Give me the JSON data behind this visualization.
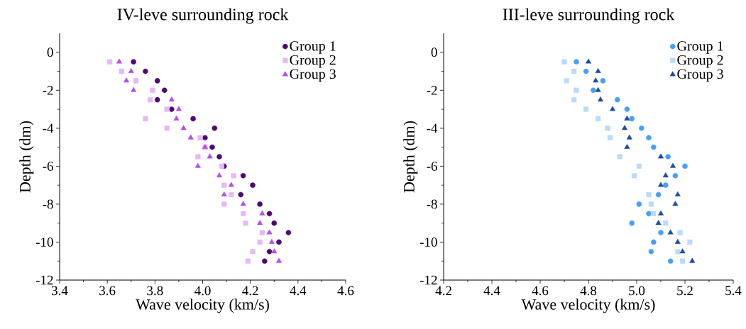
{
  "chart_data": [
    {
      "type": "scatter",
      "title": "IV-leve surrounding rock",
      "xlabel": "Wave velocity (km/s)",
      "ylabel": "Depth (dm)",
      "xlim": [
        3.4,
        4.6
      ],
      "ylim": [
        -12,
        1
      ],
      "xticks": [
        3.4,
        3.6,
        3.8,
        {
          "value": 4,
          "label": "4.0"
        },
        4.2,
        4.4,
        4.6
      ],
      "yticks": [
        0,
        -2,
        -4,
        -6,
        -8,
        -10,
        -12
      ],
      "legend": "top right",
      "grid": false,
      "series": [
        {
          "name": "Group 1",
          "color": "#4b0c70",
          "marker": "circle",
          "x": [
            3.71,
            3.76,
            3.81,
            3.84,
            3.81,
            3.87,
            3.96,
            4.05,
            4.01,
            4.04,
            4.07,
            4.09,
            4.17,
            4.21,
            4.16,
            4.24,
            4.28,
            4.3,
            4.36,
            4.32,
            4.28,
            4.26
          ],
          "values": [
            -0.5,
            -1,
            -1.5,
            -2,
            -2.5,
            -3,
            -3.5,
            -4,
            -4.5,
            -5,
            -5.5,
            -6,
            -6.5,
            -7,
            -7.5,
            -8,
            -8.5,
            -9,
            -9.5,
            -10,
            -10.5,
            -11
          ]
        },
        {
          "name": "Group 2",
          "color": "#e6b9f6",
          "marker": "square",
          "x": [
            3.61,
            3.66,
            3.72,
            3.79,
            3.78,
            3.85,
            3.76,
            3.85,
            3.99,
            4.01,
            3.98,
            4.08,
            4.13,
            4.09,
            4.12,
            4.09,
            4.17,
            4.18,
            4.25,
            4.24,
            4.21,
            4.19
          ],
          "values": [
            -0.5,
            -1,
            -1.5,
            -2,
            -2.5,
            -3,
            -3.5,
            -4,
            -4.5,
            -5,
            -5.5,
            -6,
            -6.5,
            -7,
            -7.5,
            -8,
            -8.5,
            -9,
            -9.5,
            -10,
            -10.5,
            -11
          ]
        },
        {
          "name": "Group 3",
          "color": "#b34ef0",
          "marker": "triangle",
          "x": [
            3.65,
            3.7,
            3.68,
            3.71,
            3.87,
            3.9,
            3.89,
            3.92,
            3.95,
            4.01,
            4.03,
            3.98,
            4.07,
            4.12,
            4.09,
            4.17,
            4.25,
            4.24,
            4.28,
            4.29,
            4.3,
            4.32
          ],
          "values": [
            -0.5,
            -1,
            -1.5,
            -2,
            -2.5,
            -3,
            -3.5,
            -4,
            -4.5,
            -5,
            -5.5,
            -6,
            -6.5,
            -7,
            -7.5,
            -8,
            -8.5,
            -9,
            -9.5,
            -10,
            -10.5,
            -11
          ]
        }
      ]
    },
    {
      "type": "scatter",
      "title": "III-leve surrounding rock",
      "xlabel": "Wave velocity (km/s)",
      "ylabel": "Depth (dm)",
      "xlim": [
        4.2,
        5.4
      ],
      "ylim": [
        -12,
        1
      ],
      "xticks": [
        4.2,
        4.4,
        4.6,
        4.8,
        {
          "value": 5,
          "label": "5.0"
        },
        5.2,
        5.4
      ],
      "yticks": [
        0,
        -2,
        -4,
        -6,
        -8,
        -10,
        -12
      ],
      "legend": "top right",
      "grid": false,
      "series": [
        {
          "name": "Group 1",
          "color": "#4aa0f0",
          "marker": "circle",
          "x": [
            4.75,
            4.79,
            4.86,
            4.82,
            4.92,
            4.96,
            4.98,
            5.02,
            5.05,
            5.07,
            5.13,
            5.2,
            5.16,
            5.12,
            5.09,
            5.01,
            5.05,
            4.98,
            5.1,
            5.07,
            5.06,
            5.14
          ],
          "values": [
            -0.5,
            -1,
            -1.5,
            -2,
            -2.5,
            -3,
            -3.5,
            -4,
            -4.5,
            -5,
            -5.5,
            -6,
            -6.5,
            -7,
            -7.5,
            -8,
            -8.5,
            -9,
            -9.5,
            -10,
            -10.5,
            -11
          ]
        },
        {
          "name": "Group 2",
          "color": "#b9dbf8",
          "marker": "square",
          "x": [
            4.7,
            4.74,
            4.71,
            4.75,
            4.74,
            4.79,
            4.84,
            4.88,
            4.89,
            null,
            4.93,
            5.01,
            4.99,
            null,
            5.05,
            5.06,
            5.07,
            5.12,
            5.18,
            5.22,
            5.17,
            5.19
          ],
          "values": [
            -0.5,
            -1,
            -1.5,
            -2,
            -2.5,
            -3,
            -3.5,
            -4,
            -4.5,
            null,
            -5.5,
            -6,
            -6.5,
            null,
            -7.5,
            -8,
            -8.5,
            -9,
            -9.5,
            -10,
            -10.5,
            -11
          ]
        },
        {
          "name": "Group 3",
          "color": "#1b4f9c",
          "marker": "triangle",
          "x": [
            4.8,
            4.84,
            4.83,
            4.84,
            4.85,
            4.9,
            4.96,
            4.95,
            4.97,
            4.96,
            5.1,
            5.15,
            5.12,
            5.1,
            5.17,
            5.16,
            5.1,
            5.09,
            5.14,
            5.17,
            5.19,
            5.23
          ],
          "values": [
            -0.5,
            -1,
            -1.5,
            -2,
            -2.5,
            -3,
            -3.5,
            -4,
            -4.5,
            -5,
            -5.5,
            -6,
            -6.5,
            -7,
            -7.5,
            -8,
            -8.5,
            -9,
            -9.5,
            -10,
            -10.5,
            -11
          ]
        }
      ]
    }
  ]
}
